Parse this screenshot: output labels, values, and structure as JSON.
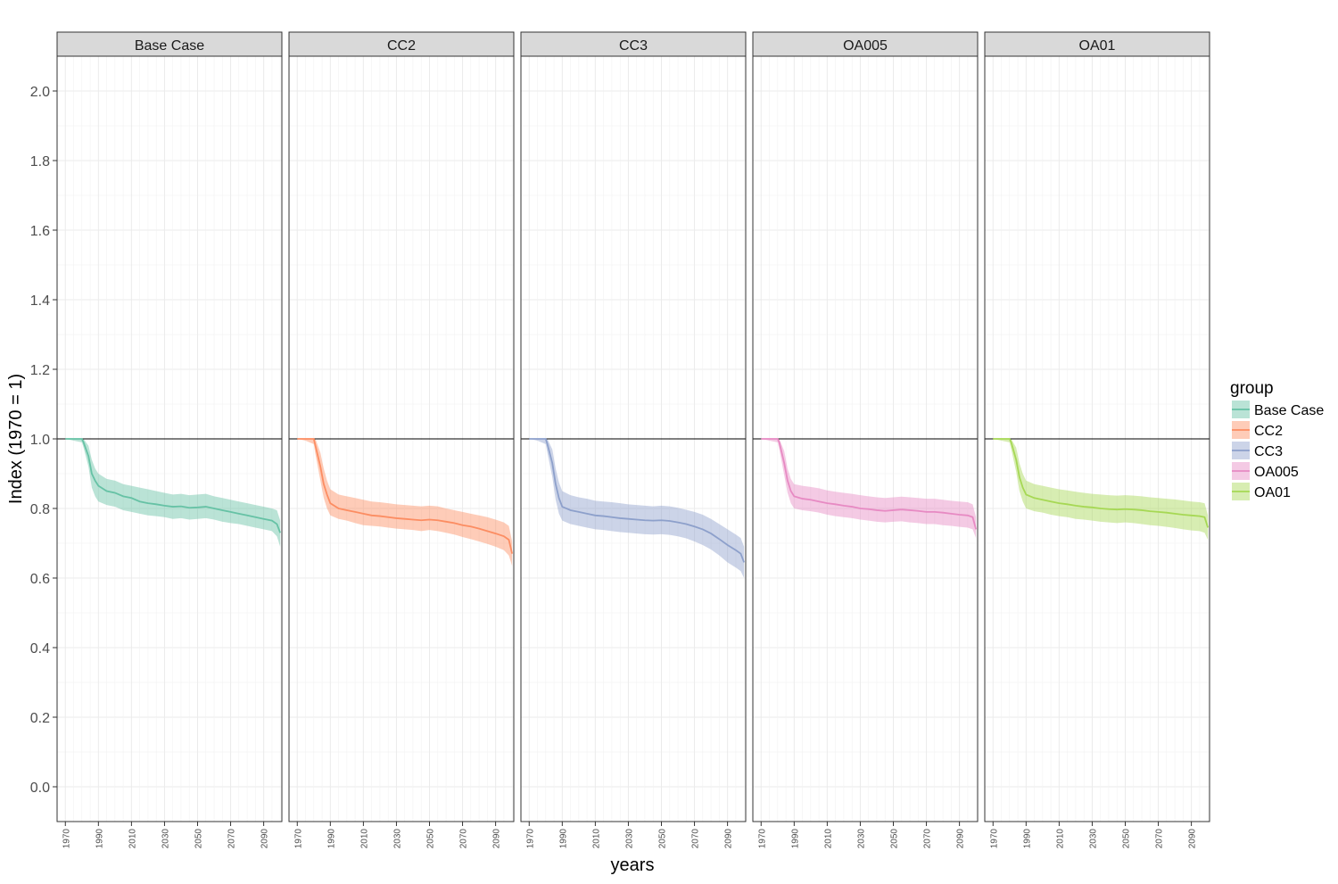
{
  "chart_data": {
    "type": "area",
    "xlabel": "years",
    "ylabel": "Index (1970 = 1)",
    "xlim": [
      1965,
      2101
    ],
    "ylim": [
      -0.1,
      2.1
    ],
    "x_ticks": [
      1970,
      1990,
      2010,
      2030,
      2050,
      2070,
      2090
    ],
    "y_ticks": [
      0.0,
      0.2,
      0.4,
      0.6,
      0.8,
      1.0,
      1.2,
      1.4,
      1.6,
      1.8,
      2.0
    ],
    "y_tick_labels": [
      "0.0",
      "0.2",
      "0.4",
      "0.6",
      "0.8",
      "1.0",
      "1.2",
      "1.4",
      "1.6",
      "1.8",
      "2.0"
    ],
    "reference_line_y": 1.0,
    "grid": true,
    "legend": {
      "title": "group",
      "placement": "right",
      "entries": [
        "Base Case",
        "CC2",
        "CC3",
        "OA005",
        "OA01"
      ]
    },
    "x": [
      1970,
      1975,
      1980,
      1981,
      1984,
      1986,
      1988,
      1990,
      1995,
      2000,
      2005,
      2010,
      2015,
      2020,
      2025,
      2030,
      2035,
      2040,
      2045,
      2050,
      2055,
      2060,
      2065,
      2070,
      2075,
      2080,
      2085,
      2090,
      2095,
      2098,
      2100
    ],
    "series": [
      {
        "name": "Base Case",
        "color": "#66c2a5",
        "values": [
          1.0,
          1.0,
          1.0,
          0.99,
          0.95,
          0.9,
          0.88,
          0.865,
          0.85,
          0.845,
          0.835,
          0.83,
          0.82,
          0.815,
          0.812,
          0.808,
          0.805,
          0.806,
          0.802,
          0.803,
          0.805,
          0.8,
          0.795,
          0.79,
          0.785,
          0.78,
          0.775,
          0.77,
          0.765,
          0.755,
          0.73
        ],
        "lower": [
          1.0,
          0.995,
          0.99,
          0.975,
          0.92,
          0.86,
          0.835,
          0.82,
          0.81,
          0.805,
          0.795,
          0.79,
          0.785,
          0.78,
          0.778,
          0.775,
          0.77,
          0.772,
          0.768,
          0.77,
          0.772,
          0.768,
          0.762,
          0.758,
          0.755,
          0.75,
          0.745,
          0.74,
          0.735,
          0.72,
          0.69
        ],
        "upper": [
          1.0,
          1.0,
          1.0,
          1.0,
          0.98,
          0.94,
          0.915,
          0.9,
          0.885,
          0.88,
          0.87,
          0.865,
          0.86,
          0.855,
          0.85,
          0.845,
          0.84,
          0.842,
          0.838,
          0.84,
          0.842,
          0.835,
          0.83,
          0.825,
          0.82,
          0.815,
          0.81,
          0.805,
          0.8,
          0.795,
          0.765
        ]
      },
      {
        "name": "CC2",
        "color": "#fc8d62",
        "values": [
          1.0,
          1.0,
          1.0,
          0.98,
          0.92,
          0.87,
          0.84,
          0.815,
          0.8,
          0.795,
          0.79,
          0.785,
          0.78,
          0.778,
          0.775,
          0.772,
          0.77,
          0.768,
          0.766,
          0.768,
          0.766,
          0.762,
          0.758,
          0.752,
          0.748,
          0.742,
          0.735,
          0.728,
          0.72,
          0.71,
          0.67
        ],
        "lower": [
          1.0,
          0.995,
          0.985,
          0.955,
          0.88,
          0.83,
          0.8,
          0.78,
          0.77,
          0.765,
          0.758,
          0.752,
          0.75,
          0.748,
          0.745,
          0.742,
          0.74,
          0.738,
          0.735,
          0.738,
          0.735,
          0.73,
          0.725,
          0.718,
          0.712,
          0.705,
          0.698,
          0.69,
          0.68,
          0.665,
          0.635
        ],
        "upper": [
          1.0,
          1.0,
          1.0,
          1.0,
          0.96,
          0.915,
          0.88,
          0.855,
          0.84,
          0.835,
          0.83,
          0.825,
          0.82,
          0.818,
          0.815,
          0.812,
          0.81,
          0.808,
          0.806,
          0.808,
          0.806,
          0.8,
          0.795,
          0.79,
          0.785,
          0.78,
          0.775,
          0.768,
          0.76,
          0.75,
          0.705
        ]
      },
      {
        "name": "CC3",
        "color": "#8da0cb",
        "values": [
          1.0,
          1.0,
          1.0,
          0.985,
          0.93,
          0.87,
          0.83,
          0.805,
          0.795,
          0.79,
          0.785,
          0.78,
          0.778,
          0.775,
          0.772,
          0.77,
          0.768,
          0.766,
          0.765,
          0.766,
          0.764,
          0.76,
          0.755,
          0.748,
          0.74,
          0.728,
          0.712,
          0.695,
          0.68,
          0.67,
          0.645
        ],
        "lower": [
          1.0,
          0.995,
          0.985,
          0.96,
          0.89,
          0.825,
          0.785,
          0.765,
          0.755,
          0.75,
          0.745,
          0.74,
          0.738,
          0.735,
          0.732,
          0.73,
          0.728,
          0.726,
          0.725,
          0.726,
          0.724,
          0.72,
          0.714,
          0.705,
          0.695,
          0.682,
          0.665,
          0.645,
          0.63,
          0.62,
          0.6
        ],
        "upper": [
          1.0,
          1.0,
          1.0,
          1.0,
          0.97,
          0.915,
          0.875,
          0.85,
          0.838,
          0.832,
          0.828,
          0.822,
          0.82,
          0.818,
          0.815,
          0.812,
          0.81,
          0.808,
          0.806,
          0.808,
          0.806,
          0.802,
          0.796,
          0.79,
          0.782,
          0.77,
          0.755,
          0.74,
          0.725,
          0.715,
          0.69
        ]
      },
      {
        "name": "OA005",
        "color": "#e78ac3",
        "values": [
          1.0,
          1.0,
          1.0,
          0.99,
          0.93,
          0.88,
          0.85,
          0.835,
          0.828,
          0.825,
          0.82,
          0.815,
          0.812,
          0.808,
          0.805,
          0.8,
          0.798,
          0.795,
          0.793,
          0.795,
          0.797,
          0.795,
          0.793,
          0.79,
          0.79,
          0.788,
          0.785,
          0.782,
          0.78,
          0.775,
          0.74
        ],
        "lower": [
          1.0,
          0.995,
          0.99,
          0.97,
          0.895,
          0.845,
          0.815,
          0.8,
          0.795,
          0.792,
          0.788,
          0.782,
          0.778,
          0.775,
          0.772,
          0.768,
          0.765,
          0.762,
          0.76,
          0.762,
          0.763,
          0.76,
          0.758,
          0.755,
          0.755,
          0.752,
          0.75,
          0.747,
          0.745,
          0.74,
          0.715
        ],
        "upper": [
          1.0,
          1.0,
          1.0,
          1.0,
          0.965,
          0.915,
          0.885,
          0.87,
          0.865,
          0.862,
          0.858,
          0.852,
          0.848,
          0.845,
          0.842,
          0.838,
          0.835,
          0.832,
          0.83,
          0.832,
          0.834,
          0.832,
          0.83,
          0.828,
          0.828,
          0.825,
          0.822,
          0.82,
          0.818,
          0.812,
          0.775
        ]
      },
      {
        "name": "OA01",
        "color": "#a6d854",
        "values": [
          1.0,
          1.0,
          1.0,
          0.99,
          0.94,
          0.89,
          0.86,
          0.84,
          0.83,
          0.825,
          0.82,
          0.815,
          0.812,
          0.808,
          0.805,
          0.803,
          0.8,
          0.798,
          0.797,
          0.798,
          0.797,
          0.795,
          0.792,
          0.79,
          0.788,
          0.785,
          0.782,
          0.78,
          0.778,
          0.775,
          0.745
        ],
        "lower": [
          1.0,
          0.995,
          0.99,
          0.97,
          0.905,
          0.85,
          0.82,
          0.8,
          0.792,
          0.788,
          0.782,
          0.778,
          0.775,
          0.77,
          0.768,
          0.765,
          0.762,
          0.76,
          0.758,
          0.76,
          0.758,
          0.755,
          0.752,
          0.75,
          0.747,
          0.744,
          0.74,
          0.737,
          0.735,
          0.73,
          0.71
        ],
        "upper": [
          1.0,
          1.0,
          1.0,
          1.0,
          0.975,
          0.93,
          0.9,
          0.88,
          0.87,
          0.865,
          0.86,
          0.855,
          0.852,
          0.848,
          0.845,
          0.842,
          0.84,
          0.838,
          0.837,
          0.838,
          0.837,
          0.835,
          0.832,
          0.83,
          0.828,
          0.826,
          0.823,
          0.82,
          0.818,
          0.815,
          0.78
        ]
      }
    ]
  }
}
